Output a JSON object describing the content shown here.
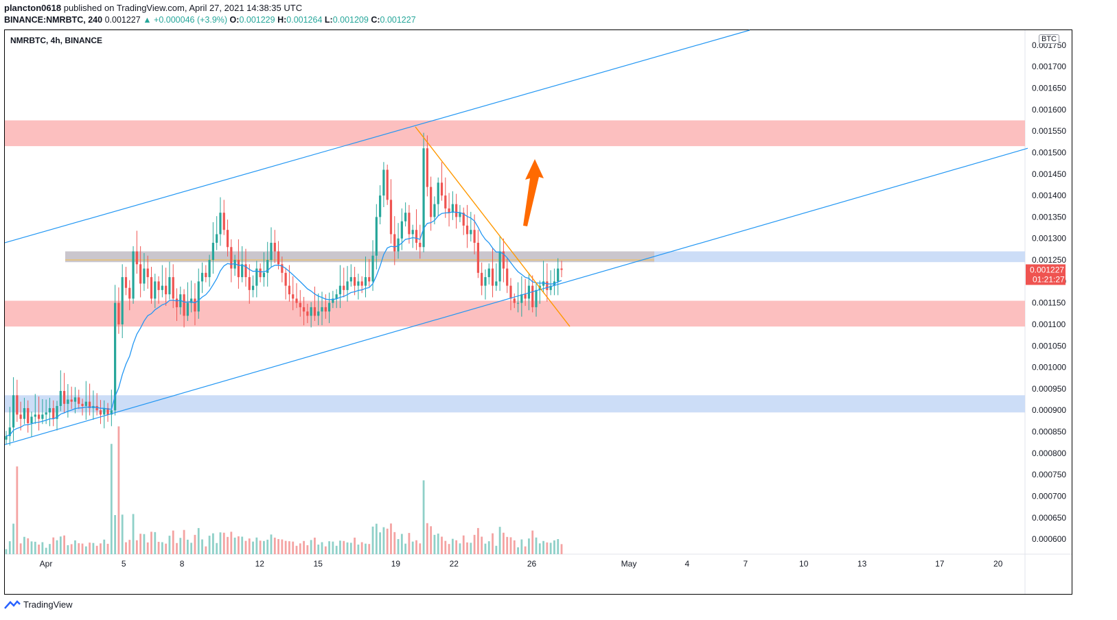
{
  "header": {
    "user": "plancton0618",
    "published_text": "published on TradingView.com, April 27, 2021 14:38:35 UTC",
    "symbol_line": "BINANCE:NMRBTC, 240",
    "last": "0.001227",
    "change": "▲ +0.000046 (+3.9%)",
    "o_label": "O:",
    "o_value": "0.001229",
    "h_label": "H:",
    "h_value": "0.001264",
    "l_label": "L:",
    "l_value": "0.001209",
    "c_label": "C:",
    "c_value": "0.001227"
  },
  "legend": "NMRBTC, 4h, BINANCE",
  "unit": "BTC",
  "footer": {
    "brand": "TradingView"
  },
  "colors": {
    "up": "#26a69a",
    "down": "#ef5350",
    "ema": "#2196f3",
    "channel": "#2196f3",
    "resistance_zone": "#fcb8b8",
    "support_zone": "#c9dbf7",
    "trendline": "#ff9800",
    "arrow": "#ff6a00",
    "price_label": "#ef5350"
  },
  "chart_data": {
    "type": "candlestick",
    "title": "NMRBTC, 4h, BINANCE",
    "y_axis": {
      "range": [
        0.000565,
        0.001785
      ],
      "ticks": [
        "0.001750",
        "0.001700",
        "0.001650",
        "0.001600",
        "0.001550",
        "0.001500",
        "0.001450",
        "0.001400",
        "0.001350",
        "0.001300",
        "0.001250",
        "0.001200",
        "0.001150",
        "0.001100",
        "0.001050",
        "0.001000",
        "0.000950",
        "0.000900",
        "0.000850",
        "0.000800",
        "0.000750",
        "0.000700",
        "0.000650",
        "0.000600"
      ],
      "last_price_label": "0.001227",
      "countdown_label": "01:21:27"
    },
    "x_axis": {
      "ticks": [
        {
          "label": "Apr",
          "day": 1
        },
        {
          "label": "5",
          "day": 5
        },
        {
          "label": "8",
          "day": 8
        },
        {
          "label": "12",
          "day": 12
        },
        {
          "label": "15",
          "day": 15
        },
        {
          "label": "19",
          "day": 19
        },
        {
          "label": "22",
          "day": 22
        },
        {
          "label": "26",
          "day": 26
        },
        {
          "label": "May",
          "day": 31
        },
        {
          "label": "4",
          "day": 34
        },
        {
          "label": "7",
          "day": 37
        },
        {
          "label": "10",
          "day": 40
        },
        {
          "label": "13",
          "day": 43
        },
        {
          "label": "17",
          "day": 47
        },
        {
          "label": "20",
          "day": 50
        }
      ]
    },
    "candles_close": [
      0.00084,
      0.00086,
      0.000935,
      0.00089,
      0.00088,
      0.000905,
      0.00087,
      0.000885,
      0.00089,
      0.00088,
      0.00089,
      0.000895,
      0.000905,
      0.00088,
      0.00091,
      0.000945,
      0.000915,
      0.000925,
      0.00092,
      0.00093,
      0.000915,
      0.00091,
      0.00092,
      0.000905,
      0.00091,
      0.0009,
      0.00089,
      0.000905,
      0.00089,
      0.0009,
      0.00115,
      0.0011,
      0.00121,
      0.001185,
      0.00116,
      0.00127,
      0.00124,
      0.001195,
      0.00123,
      0.00121,
      0.00116,
      0.0012,
      0.00118,
      0.00119,
      0.00117,
      0.00121,
      0.00116,
      0.00114,
      0.00117,
      0.00112,
      0.00115,
      0.00116,
      0.00113,
      0.0012,
      0.00122,
      0.00121,
      0.00125,
      0.00129,
      0.00131,
      0.00136,
      0.00132,
      0.00128,
      0.00123,
      0.00125,
      0.00121,
      0.00124,
      0.00121,
      0.00118,
      0.00119,
      0.00123,
      0.00121,
      0.00122,
      0.00125,
      0.00129,
      0.00127,
      0.00124,
      0.00122,
      0.00119,
      0.00117,
      0.00116,
      0.00115,
      0.00114,
      0.00113,
      0.00112,
      0.00114,
      0.00112,
      0.00113,
      0.00114,
      0.00113,
      0.00115,
      0.00116,
      0.00117,
      0.00119,
      0.00118,
      0.0012,
      0.00121,
      0.00119,
      0.0012,
      0.00119,
      0.00121,
      0.0012,
      0.00126,
      0.00135,
      0.0014,
      0.00146,
      0.00139,
      0.00131,
      0.00127,
      0.0013,
      0.00134,
      0.00136,
      0.00131,
      0.00132,
      0.00129,
      0.00128,
      0.00151,
      0.00142,
      0.00135,
      0.00138,
      0.00143,
      0.0014,
      0.00137,
      0.00136,
      0.00138,
      0.00135,
      0.00136,
      0.00133,
      0.00131,
      0.00132,
      0.00129,
      0.00122,
      0.00119,
      0.00121,
      0.00123,
      0.00119,
      0.0012,
      0.00127,
      0.00123,
      0.00119,
      0.00116,
      0.00115,
      0.00115,
      0.00117,
      0.00116,
      0.00119,
      0.00114,
      0.00118,
      0.00119,
      0.0012,
      0.00118,
      0.00119,
      0.0012,
      0.00123,
      0.001227
    ],
    "ema_last": 0.00121,
    "volume_max": 0.00026,
    "zones": [
      {
        "kind": "resistance",
        "from": 0.001515,
        "to": 0.001575
      },
      {
        "kind": "resistance",
        "from": 0.001095,
        "to": 0.001155
      },
      {
        "kind": "support",
        "from": 0.001245,
        "to": 0.00127
      },
      {
        "kind": "support",
        "from": 0.000895,
        "to": 0.000935
      }
    ],
    "channel": {
      "upper": [
        [
          0,
          0.00129
        ],
        [
          1085,
          0.001785
        ]
      ],
      "lower": [
        [
          0,
          0.00082
        ],
        [
          1490,
          0.00151
        ]
      ]
    },
    "descending_trendline": [
      [
        605,
        0.00156
      ],
      [
        830,
        0.001095
      ]
    ],
    "horizontal_level": 0.00125,
    "annotation": "arrow-up"
  }
}
